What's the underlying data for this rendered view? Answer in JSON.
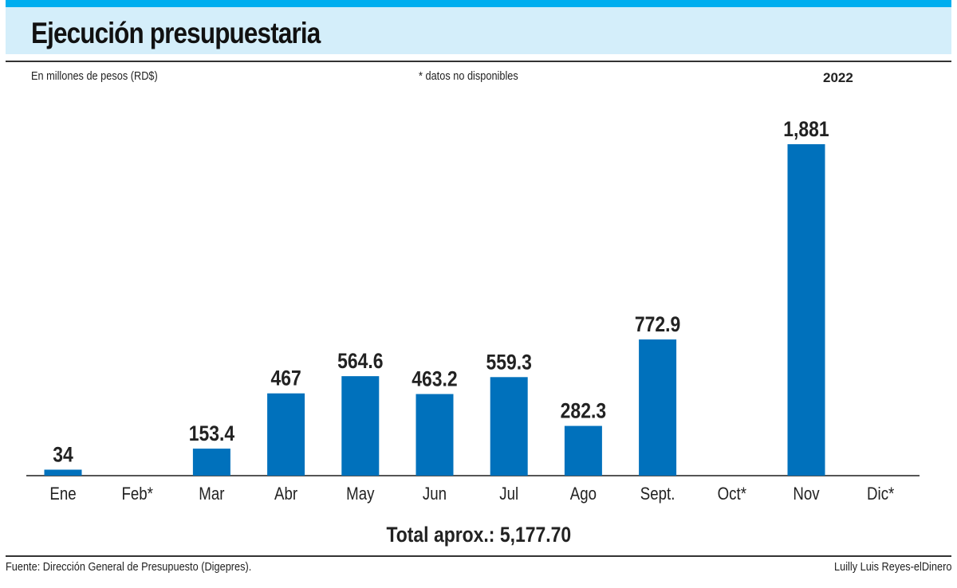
{
  "header": {
    "title": "Ejecución presupuestaria",
    "unit_note": "En millones de pesos (RD$)",
    "availability_note": "* datos no disponibles",
    "year": "2022"
  },
  "summary": {
    "total_label": "Total aprox.: 5,177.70"
  },
  "footer": {
    "source": "Fuente: Dirección General de Presupuesto (Digepres).",
    "credit": "Luilly Luis Reyes-elDinero"
  },
  "colors": {
    "bar": "#0071bc",
    "header_band": "#d4eefa",
    "top_stripe": "#00aeef",
    "axis": "#555555"
  },
  "chart_data": {
    "type": "bar",
    "title": "Ejecución presupuestaria",
    "subtitle": "En millones de pesos (RD$)",
    "xlabel": "",
    "ylabel": "",
    "categories": [
      "Ene",
      "Feb*",
      "Mar",
      "Abr",
      "May",
      "Jun",
      "Jul",
      "Ago",
      "Sept.",
      "Oct*",
      "Nov",
      "Dic*"
    ],
    "values": [
      34,
      null,
      153.4,
      467,
      564.6,
      463.2,
      559.3,
      282.3,
      772.9,
      null,
      1881,
      null
    ],
    "value_labels": [
      "34",
      "",
      "153.4",
      "467",
      "564.6",
      "463.2",
      "559.3",
      "282.3",
      "772.9",
      "",
      "1,881",
      ""
    ],
    "ylim": [
      0,
      1881
    ],
    "grid": false,
    "legend": "none",
    "annotations": [
      "* datos no disponibles",
      "Total aprox.: 5,177.70"
    ]
  }
}
